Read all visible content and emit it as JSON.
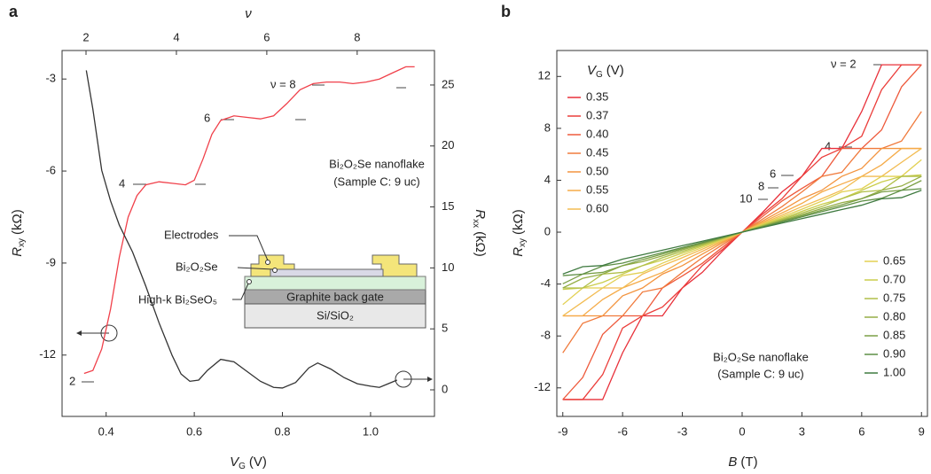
{
  "chart_data": [
    {
      "type": "line",
      "panel": "a",
      "xlabel": {
        "symbol": "V",
        "sub": "G",
        "unit": "(V)"
      },
      "ylabel": {
        "symbol": "R",
        "sub": "xy",
        "unit": "(kΩ)"
      },
      "y2label": {
        "symbol": "R",
        "sub": "xx",
        "unit": "(kΩ)"
      },
      "x2label": "ν",
      "xlim": [
        0.3,
        1.145
      ],
      "xticks": [
        0.4,
        0.6,
        0.8,
        {
          "value": 1,
          "label": "1.0"
        }
      ],
      "x2lim": [
        1.47,
        9.71
      ],
      "x2ticks": [
        2,
        4,
        6,
        8
      ],
      "ylim": [
        -14.0,
        -2.07
      ],
      "yticks": [
        -3,
        -6,
        -9,
        -12
      ],
      "y2lim": [
        -2.18,
        27.83
      ],
      "y2ticks": [
        0,
        5,
        10,
        15,
        20,
        25
      ],
      "annotations": [
        "ν = 8",
        "6",
        "4",
        "2",
        "Bi₂O₂Se nanoflake",
        "(Sample C: 9 uc)"
      ],
      "inset": [
        "Electrodes",
        "Bi₂O₂Se",
        "High-k Bi₂SeO₅",
        "Graphite back gate",
        "Si/SiO₂"
      ],
      "series": [
        {
          "color": "#f0404a",
          "axis": "y",
          "x": [
            0.35,
            0.37,
            0.39,
            0.41,
            0.43,
            0.45,
            0.47,
            0.49,
            0.52,
            0.55,
            0.58,
            0.6,
            0.62,
            0.64,
            0.66,
            0.69,
            0.72,
            0.75,
            0.78,
            0.81,
            0.84,
            0.87,
            0.9,
            0.93,
            0.96,
            0.99,
            1.02,
            1.05,
            1.08,
            1.1
          ],
          "values": [
            -12.6,
            -12.5,
            -11.8,
            -10.5,
            -8.8,
            -7.5,
            -6.8,
            -6.45,
            -6.35,
            -6.4,
            -6.45,
            -6.3,
            -5.6,
            -4.8,
            -4.35,
            -4.2,
            -4.25,
            -4.3,
            -4.2,
            -3.8,
            -3.35,
            -3.15,
            -3.1,
            -3.1,
            -3.15,
            -3.1,
            -3.0,
            -2.8,
            -2.6,
            -2.6
          ]
        },
        {
          "color": "#333333",
          "axis": "y2",
          "x": [
            0.355,
            0.37,
            0.39,
            0.41,
            0.43,
            0.46,
            0.49,
            0.52,
            0.55,
            0.57,
            0.59,
            0.61,
            0.63,
            0.66,
            0.69,
            0.72,
            0.75,
            0.78,
            0.8,
            0.83,
            0.86,
            0.88,
            0.91,
            0.94,
            0.97,
            1.0,
            1.02,
            1.04,
            1.06
          ],
          "values": [
            26.2,
            23,
            18,
            15.5,
            13.5,
            11.3,
            8.5,
            5.5,
            2.8,
            1.3,
            0.7,
            0.8,
            1.6,
            2.5,
            2.3,
            1.5,
            0.7,
            0.2,
            0.15,
            0.6,
            1.8,
            2.2,
            1.7,
            1.0,
            0.5,
            0.3,
            0.2,
            0.5,
            0.8
          ]
        }
      ]
    },
    {
      "type": "line",
      "panel": "b",
      "xlabel": {
        "symbol": "B",
        "unit": "(T)"
      },
      "ylabel": {
        "symbol": "R",
        "sub": "xy",
        "unit": "(kΩ)"
      },
      "legend_title": {
        "symbol": "V",
        "sub": "G",
        "unit": "(V)"
      },
      "xlim": [
        -9.3,
        9.3
      ],
      "xticks": [
        -9,
        -6,
        -3,
        0,
        3,
        6,
        9
      ],
      "ylim": [
        -14.2,
        14.0
      ],
      "yticks": [
        12,
        8,
        4,
        0,
        -4,
        -8,
        -12
      ],
      "annotations": [
        "ν = 2",
        "4",
        "6",
        "8",
        "10",
        "Bi₂O₂Se nanoflake",
        "(Sample C: 9 uc)"
      ],
      "x": [
        -9,
        -8,
        -7,
        -6,
        -5,
        -4,
        -3,
        -2,
        -1,
        0,
        1,
        2,
        3,
        4,
        5,
        6,
        7,
        8,
        9
      ],
      "series": [
        {
          "name": "0.35",
          "color": "#e8303a",
          "values": [
            -12.9,
            -12.9,
            -12.9,
            -9.3,
            -6.45,
            -6.45,
            -4.3,
            -3.1,
            -1.48,
            0,
            1.48,
            3.1,
            4.3,
            6.45,
            6.45,
            9.3,
            12.9,
            12.9,
            12.9
          ]
        },
        {
          "name": "0.37",
          "color": "#eb3d3a",
          "values": [
            -12.9,
            -12.9,
            -10.98,
            -7.39,
            -6.45,
            -5.77,
            -4.3,
            -2.58,
            -1.35,
            0,
            1.35,
            2.58,
            4.3,
            5.77,
            6.45,
            7.39,
            10.98,
            12.9,
            12.9
          ]
        },
        {
          "name": "0.40",
          "color": "#ee5a3c",
          "values": [
            -12.9,
            -11.2,
            -7.88,
            -6.45,
            -6.45,
            -4.3,
            -3.37,
            -2.4,
            -1.18,
            0,
            1.18,
            2.4,
            3.37,
            4.3,
            6.45,
            6.45,
            7.88,
            11.2,
            12.9
          ]
        },
        {
          "name": "0.45",
          "color": "#f07a3c",
          "values": [
            -9.3,
            -7.02,
            -6.45,
            -6.45,
            -4.61,
            -4.3,
            -3.1,
            -1.97,
            -0.985,
            0,
            0.985,
            1.97,
            3.1,
            4.3,
            4.61,
            6.45,
            6.45,
            7.02,
            9.3
          ]
        },
        {
          "name": "0.50",
          "color": "#f3943f",
          "values": [
            -6.45,
            -6.45,
            -6.45,
            -4.91,
            -4.3,
            -3.23,
            -2.58,
            -1.69,
            -0.84,
            0,
            0.84,
            1.69,
            2.58,
            3.23,
            4.3,
            4.91,
            6.45,
            6.45,
            6.45
          ]
        },
        {
          "name": "0.55",
          "color": "#f5ab48",
          "values": [
            -6.45,
            -6.45,
            -5.19,
            -4.3,
            -3.71,
            -3.1,
            -2.22,
            -1.48,
            -0.74,
            0,
            0.74,
            1.48,
            2.22,
            3.1,
            3.71,
            4.3,
            5.19,
            6.45,
            6.45
          ]
        },
        {
          "name": "0.60",
          "color": "#f2bc52",
          "values": [
            -6.45,
            -5.38,
            -4.3,
            -4.3,
            -3.23,
            -2.58,
            -1.97,
            -1.31,
            -0.66,
            0,
            0.66,
            1.31,
            1.97,
            2.58,
            3.23,
            4.3,
            4.3,
            5.38,
            6.45
          ]
        },
        {
          "name": "0.65",
          "color": "#e2d052",
          "values": [
            -5.58,
            -4.3,
            -4.3,
            -3.35,
            -3.1,
            -2.39,
            -1.77,
            -1.18,
            -0.59,
            0,
            0.59,
            1.18,
            1.77,
            2.39,
            3.1,
            3.35,
            4.3,
            4.3,
            5.58
          ]
        },
        {
          "name": "0.70",
          "color": "#cacd4c",
          "values": [
            -4.41,
            -4.3,
            -3.87,
            -3.23,
            -2.58,
            -2.15,
            -1.61,
            -1.07,
            -0.54,
            0,
            0.54,
            1.07,
            1.61,
            2.15,
            2.58,
            3.23,
            3.87,
            4.3,
            4.41
          ]
        },
        {
          "name": "0.75",
          "color": "#b0bf48",
          "values": [
            -4.3,
            -4.3,
            -3.23,
            -3.1,
            -2.58,
            -1.97,
            -1.48,
            -0.985,
            -0.49,
            0,
            0.49,
            0.985,
            1.48,
            1.97,
            2.58,
            3.1,
            3.23,
            4.3,
            4.3
          ]
        },
        {
          "name": "0.80",
          "color": "#95ae46",
          "values": [
            -4.3,
            -3.56,
            -3.23,
            -2.58,
            -2.27,
            -1.82,
            -1.36,
            -0.91,
            -0.45,
            0,
            0.45,
            0.91,
            1.36,
            1.82,
            2.27,
            2.58,
            3.23,
            3.56,
            4.3
          ]
        },
        {
          "name": "0.85",
          "color": "#7a9f45",
          "values": [
            -3.98,
            -3.23,
            -3.1,
            -2.58,
            -2.11,
            -1.69,
            -1.27,
            -0.84,
            -0.42,
            0,
            0.42,
            0.84,
            1.27,
            1.69,
            2.11,
            2.58,
            3.1,
            3.23,
            3.98
          ]
        },
        {
          "name": "0.90",
          "color": "#5e8f45",
          "values": [
            -3.35,
            -3.23,
            -2.61,
            -2.39,
            -1.97,
            -1.58,
            -1.18,
            -0.79,
            -0.39,
            0,
            0.39,
            0.79,
            1.18,
            1.58,
            1.97,
            2.39,
            2.61,
            3.23,
            3.35
          ]
        },
        {
          "name": "1.00",
          "color": "#3f7a40",
          "values": [
            -3.23,
            -2.66,
            -2.57,
            -2.08,
            -1.74,
            -1.39,
            -1.04,
            -0.7,
            -0.35,
            0,
            0.35,
            0.7,
            1.04,
            1.39,
            1.74,
            2.08,
            2.57,
            2.66,
            3.23
          ]
        }
      ]
    }
  ]
}
